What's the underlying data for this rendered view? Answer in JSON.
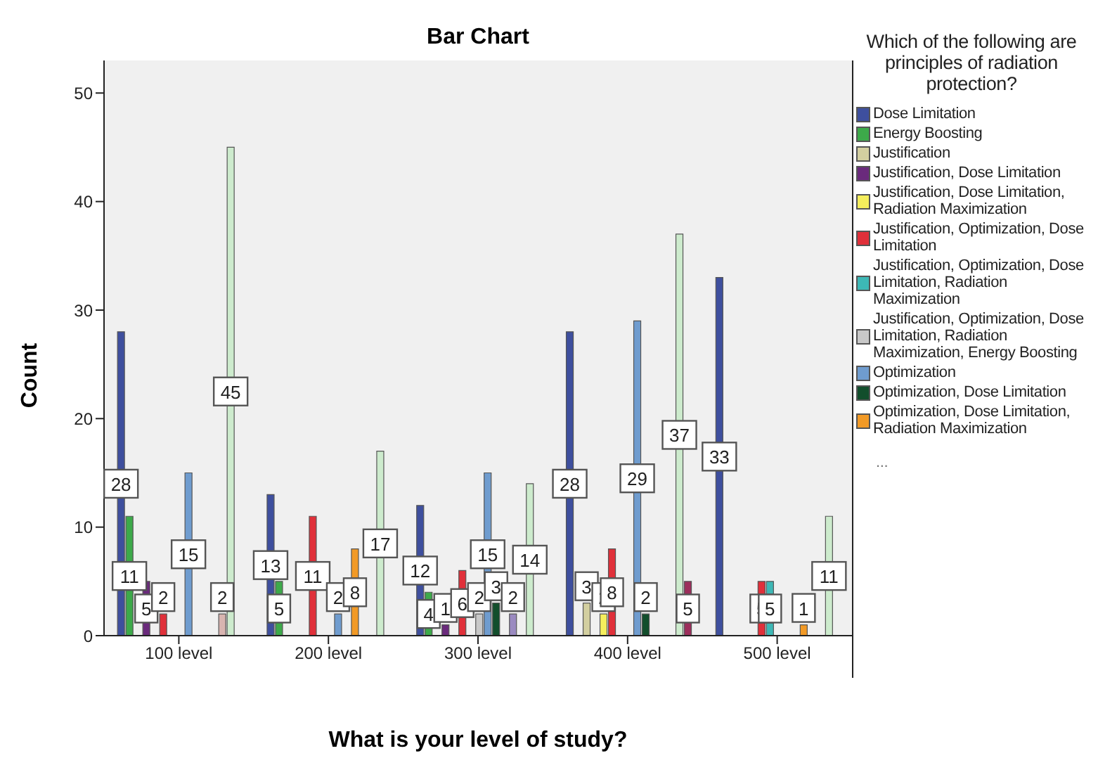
{
  "chart_data": {
    "type": "bar",
    "title": "Bar Chart",
    "xlabel": "What is your level of study?",
    "ylabel": "Count",
    "legend_title": "Which of the following are principles of radiation protection?",
    "categories": [
      "100 level",
      "200 level",
      "300 level",
      "400 level",
      "500 level"
    ],
    "series": [
      {
        "name": "Dose Limitation",
        "color": "#3e4f9e",
        "values": [
          28,
          13,
          12,
          28,
          33
        ]
      },
      {
        "name": "Energy Boosting",
        "color": "#3daa4a",
        "values": [
          11,
          5,
          4,
          null,
          null
        ]
      },
      {
        "name": "Justification",
        "color": "#d3cfa0",
        "values": [
          null,
          null,
          null,
          3,
          null
        ]
      },
      {
        "name": "Justification, Dose Limitation",
        "color": "#6a2a7c",
        "values": [
          5,
          null,
          1,
          null,
          null
        ]
      },
      {
        "name": "Justification, Dose Limitation, Radiation Maximization",
        "color": "#f5ee5c",
        "values": [
          null,
          null,
          null,
          2,
          null
        ]
      },
      {
        "name": "Justification, Optimization, Dose Limitation",
        "color": "#e0303a",
        "values": [
          2,
          11,
          6,
          8,
          5
        ]
      },
      {
        "name": "Justification, Optimization, Dose Limitation, Radiation Maximization",
        "color": "#3db8b6",
        "values": [
          null,
          null,
          null,
          null,
          5
        ]
      },
      {
        "name": "Justification, Optimization, Dose Limitation, Radiation Maximization, Energy Boosting",
        "color": "#c8c8c8",
        "values": [
          null,
          null,
          2,
          null,
          null
        ]
      },
      {
        "name": "Optimization",
        "color": "#6f9ccf",
        "values": [
          15,
          2,
          15,
          29,
          null
        ]
      },
      {
        "name": "Optimization, Dose Limitation",
        "color": "#124e2c",
        "values": [
          null,
          null,
          3,
          2,
          null
        ]
      },
      {
        "name": "Optimization, Dose Limitation, Radiation Maximization",
        "color": "#f29a26",
        "values": [
          null,
          8,
          null,
          null,
          1
        ]
      },
      {
        "color": "#9a8ac0",
        "values": [
          null,
          null,
          2,
          null,
          null
        ]
      },
      {
        "color": "#d8b4b0",
        "values": [
          2,
          null,
          null,
          null,
          null
        ]
      },
      {
        "color": "#cdebcd",
        "values": [
          45,
          17,
          14,
          37,
          11
        ]
      },
      {
        "color": "#9c2f5c",
        "values": [
          null,
          null,
          null,
          5,
          null
        ]
      }
    ],
    "ylim": [
      0,
      53
    ],
    "yticks": [
      0,
      10,
      20,
      30,
      40,
      50
    ],
    "grid": false,
    "legend": "right",
    "data_labels": true,
    "annotations": [
      "..."
    ]
  }
}
